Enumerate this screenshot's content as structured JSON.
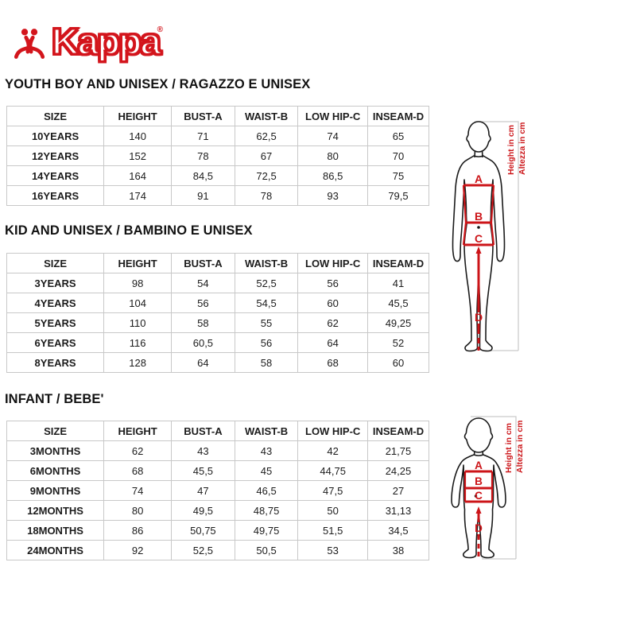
{
  "logo": {
    "brand": "Kappa",
    "registered": "®"
  },
  "diagram": {
    "height_label_en": "Height in cm",
    "height_label_it": "Altezza in cm",
    "measure_a": "A",
    "measure_b": "B",
    "measure_c": "C",
    "measure_d": "D"
  },
  "colors": {
    "brand_red": "#d3151c",
    "measure_red": "#cc1418",
    "table_border": "#c8c8c8"
  },
  "sections": [
    {
      "heading": "YOUTH BOY AND UNISEX / RAGAZZO E UNISEX",
      "columns": [
        "SIZE",
        "HEIGHT",
        "BUST-A",
        "WAIST-B",
        "LOW HIP-C",
        "INSEAM-D"
      ],
      "rows": [
        [
          "10YEARS",
          "140",
          "71",
          "62,5",
          "74",
          "65"
        ],
        [
          "12YEARS",
          "152",
          "78",
          "67",
          "80",
          "70"
        ],
        [
          "14YEARS",
          "164",
          "84,5",
          "72,5",
          "86,5",
          "75"
        ],
        [
          "16YEARS",
          "174",
          "91",
          "78",
          "93",
          "79,5"
        ]
      ]
    },
    {
      "heading": "KID AND UNISEX / BAMBINO E UNISEX",
      "columns": [
        "SIZE",
        "HEIGHT",
        "BUST-A",
        "WAIST-B",
        "LOW HIP-C",
        "INSEAM-D"
      ],
      "rows": [
        [
          "3YEARS",
          "98",
          "54",
          "52,5",
          "56",
          "41"
        ],
        [
          "4YEARS",
          "104",
          "56",
          "54,5",
          "60",
          "45,5"
        ],
        [
          "5YEARS",
          "110",
          "58",
          "55",
          "62",
          "49,25"
        ],
        [
          "6YEARS",
          "116",
          "60,5",
          "56",
          "64",
          "52"
        ],
        [
          "8YEARS",
          "128",
          "64",
          "58",
          "68",
          "60"
        ]
      ]
    },
    {
      "heading": "INFANT / BEBE'",
      "columns": [
        "SIZE",
        "HEIGHT",
        "BUST-A",
        "WAIST-B",
        "LOW HIP-C",
        "INSEAM-D"
      ],
      "rows": [
        [
          "3MONTHS",
          "62",
          "43",
          "43",
          "42",
          "21,75"
        ],
        [
          "6MONTHS",
          "68",
          "45,5",
          "45",
          "44,75",
          "24,25"
        ],
        [
          "9MONTHS",
          "74",
          "47",
          "46,5",
          "47,5",
          "27"
        ],
        [
          "12MONTHS",
          "80",
          "49,5",
          "48,75",
          "50",
          "31,13"
        ],
        [
          "18MONTHS",
          "86",
          "50,75",
          "49,75",
          "51,5",
          "34,5"
        ],
        [
          "24MONTHS",
          "92",
          "52,5",
          "50,5",
          "53",
          "38"
        ]
      ]
    }
  ]
}
